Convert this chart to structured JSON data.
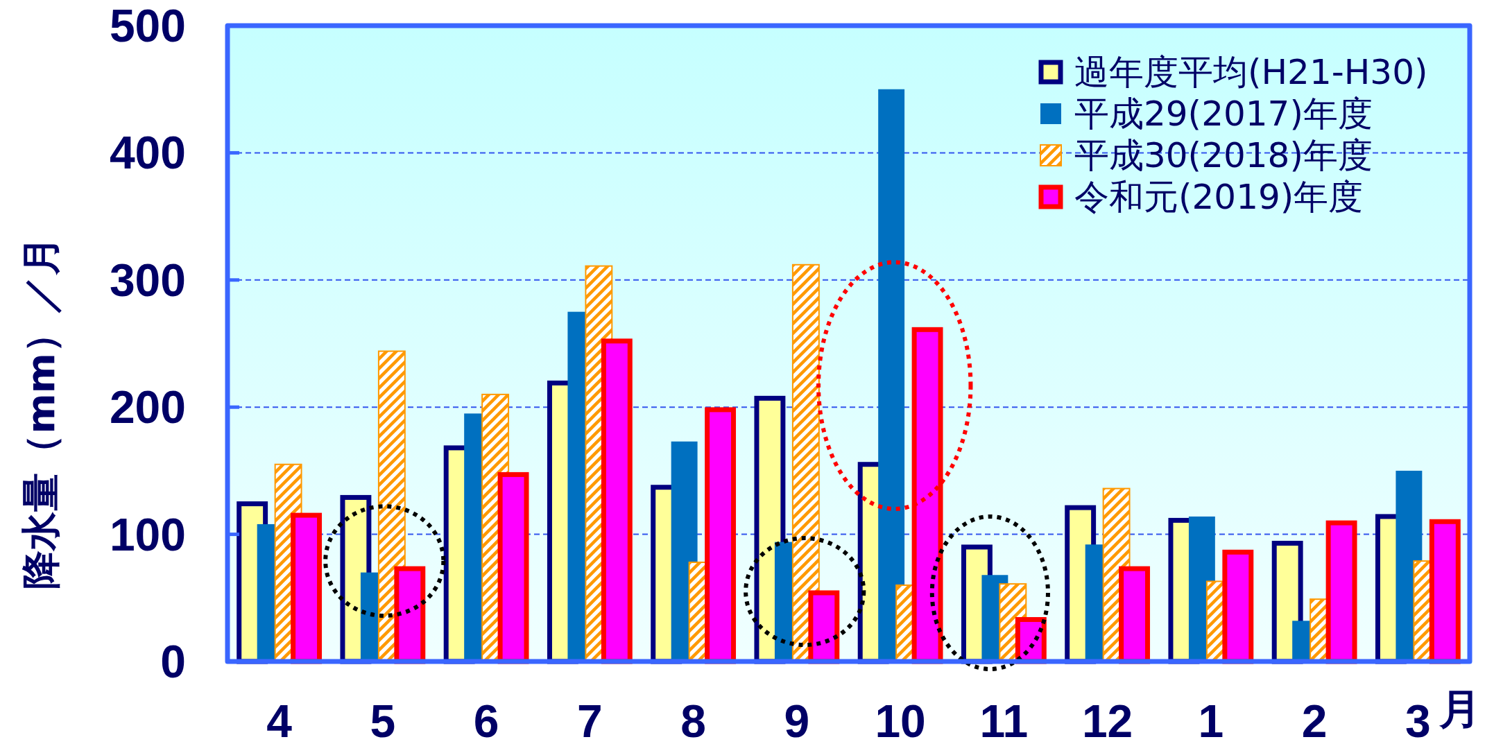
{
  "chart_data": {
    "type": "bar",
    "ylabel": "降水量（mm）／月",
    "xlabel": "月",
    "categories": [
      "4",
      "5",
      "6",
      "7",
      "8",
      "9",
      "10",
      "11",
      "12",
      "1",
      "2",
      "3"
    ],
    "series": [
      {
        "name": "過年度平均(H21-H30)",
        "color": "#ffff99",
        "values": [
          124,
          129,
          168,
          219,
          137,
          207,
          155,
          90,
          121,
          111,
          93,
          114
        ]
      },
      {
        "name": "平成29(2017)年度",
        "color": "#0070c0",
        "values": [
          108,
          70,
          195,
          275,
          173,
          94,
          450,
          68,
          92,
          114,
          32,
          150
        ]
      },
      {
        "name": "平成30(2018)年度",
        "color": "#ff9900",
        "values": [
          155,
          244,
          210,
          311,
          78,
          312,
          60,
          61,
          136,
          63,
          49,
          79
        ]
      },
      {
        "name": "令和元(2019)年度",
        "color": "#ff00ff",
        "values": [
          115,
          73,
          147,
          252,
          198,
          54,
          261,
          33,
          73,
          86,
          109,
          110
        ]
      }
    ],
    "ylim": [
      0,
      500
    ],
    "yticks": [
      0,
      100,
      200,
      300,
      400,
      500
    ],
    "grid": "y",
    "legend": "top right"
  }
}
